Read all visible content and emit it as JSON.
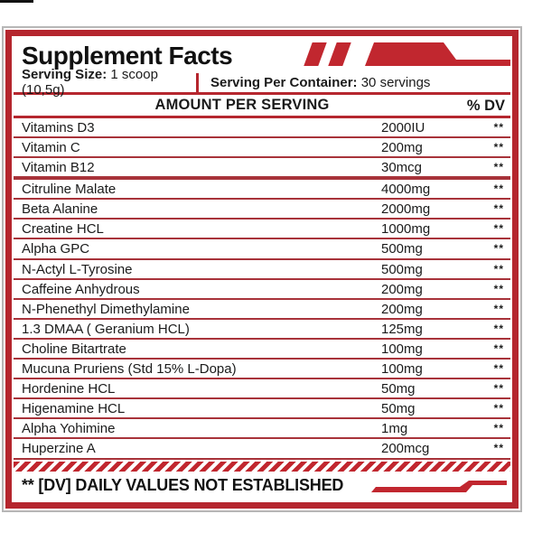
{
  "label": {
    "title": "Supplement Facts",
    "serving_size_label": "Serving Size:",
    "serving_size_value": " 1 scoop (10,5g)",
    "serving_per_container_label": "Serving Per Container:",
    "serving_per_container_value": " 30 servings",
    "amount_header": "AMOUNT PER SERVING",
    "dv_header": "% DV",
    "footnote": "** [DV] DAILY VALUES NOT ESTABLISHED"
  },
  "colors": {
    "accent_red": "#b5262e",
    "line_red": "#a8333a",
    "decor_red": "#c1272f",
    "border_gray": "#b7b7b7"
  },
  "rows": [
    {
      "name": "Vitamins D3",
      "amount": "2000IU",
      "dv": "**",
      "section_end": false
    },
    {
      "name": "Vitamin C",
      "amount": "200mg",
      "dv": "**",
      "section_end": false
    },
    {
      "name": "Vitamin B12",
      "amount": "30mcg",
      "dv": "**",
      "section_end": true
    },
    {
      "name": "Citruline Malate",
      "amount": "4000mg",
      "dv": "**",
      "section_end": false
    },
    {
      "name": "Beta Alanine",
      "amount": "2000mg",
      "dv": "**",
      "section_end": false
    },
    {
      "name": "Creatine HCL",
      "amount": "1000mg",
      "dv": "**",
      "section_end": false
    },
    {
      "name": "Alpha GPC",
      "amount": "500mg",
      "dv": "**",
      "section_end": false
    },
    {
      "name": "N-Actyl L-Tyrosine",
      "amount": "500mg",
      "dv": "**",
      "section_end": false
    },
    {
      "name": "Caffeine Anhydrous",
      "amount": "200mg",
      "dv": "**",
      "section_end": false
    },
    {
      "name": "N-Phenethyl Dimethylamine",
      "amount": "200mg",
      "dv": "**",
      "section_end": false
    },
    {
      "name": "1.3 DMAA ( Geranium HCL)",
      "amount": "125mg",
      "dv": "**",
      "section_end": false
    },
    {
      "name": "Choline Bitartrate",
      "amount": "100mg",
      "dv": "**",
      "section_end": false
    },
    {
      "name": "Mucuna Pruriens (Std 15% L-Dopa)",
      "amount": "100mg",
      "dv": "**",
      "section_end": false
    },
    {
      "name": "Hordenine HCL",
      "amount": "50mg",
      "dv": "**",
      "section_end": false
    },
    {
      "name": "Higenamine HCL",
      "amount": "50mg",
      "dv": "**",
      "section_end": false
    },
    {
      "name": "Alpha Yohimine",
      "amount": "1mg",
      "dv": "**",
      "section_end": false
    },
    {
      "name": "Huperzine A",
      "amount": "200mcg",
      "dv": "**",
      "section_end": false
    }
  ]
}
